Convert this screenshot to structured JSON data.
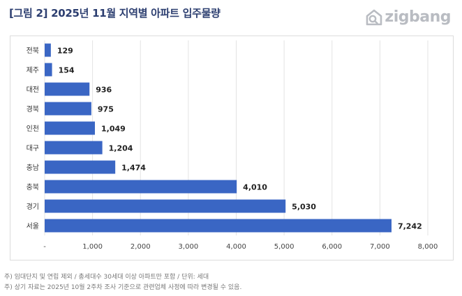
{
  "title": "[그림 2] 2025년 11월 지역별 아파트 입주물량",
  "brand": {
    "name": "zigbang",
    "color": "#b9bcc2"
  },
  "notes": [
    "주) 임대단지 및 연립 제외 / 총세대수 30세대 이상 아파트만 포함 / 단위: 세대",
    "주) 상기 자료는 2025년 10월 2주차 조사 기준으로 관련업체 사정에 따라 변경될 수 있음."
  ],
  "chart_data": {
    "type": "bar",
    "orientation": "horizontal",
    "title": "2025년 11월 지역별 아파트 입주물량",
    "xlabel": "",
    "ylabel": "",
    "categories": [
      "전북",
      "제주",
      "대전",
      "경북",
      "인천",
      "대구",
      "충남",
      "충북",
      "경기",
      "서울"
    ],
    "values": [
      129,
      154,
      936,
      975,
      1049,
      1204,
      1474,
      4010,
      5030,
      7242
    ],
    "value_labels": [
      "129",
      "154",
      "936",
      "975",
      "1,049",
      "1,204",
      "1,474",
      "4,010",
      "5,030",
      "7,242"
    ],
    "xlim": [
      0,
      8000
    ],
    "xticks": [
      0,
      1000,
      2000,
      3000,
      4000,
      5000,
      6000,
      7000,
      8000
    ],
    "xtick_labels": [
      "-",
      "1,000",
      "2,000",
      "3,000",
      "4,000",
      "5,000",
      "6,000",
      "7,000",
      "8,000"
    ],
    "grid": true,
    "bar_color": "#3a66c4",
    "unit": "세대"
  }
}
